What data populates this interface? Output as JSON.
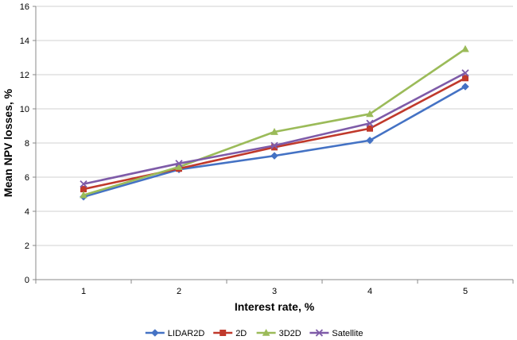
{
  "chart_data": {
    "type": "line",
    "title": "",
    "xlabel": "Interest rate, %",
    "ylabel": "Mean NPV losses, %",
    "categories": [
      "1",
      "2",
      "3",
      "4",
      "5"
    ],
    "ylim": [
      0,
      16
    ],
    "yticks": [
      "0",
      "2",
      "4",
      "6",
      "8",
      "10",
      "12",
      "14",
      "16"
    ],
    "grid": "horizontal",
    "legend_position": "bottom",
    "series": [
      {
        "name": "LIDAR2D",
        "values": [
          4.85,
          6.45,
          7.25,
          8.15,
          11.3
        ],
        "color": "#4472C4",
        "marker": "diamond"
      },
      {
        "name": "2D",
        "values": [
          5.3,
          6.5,
          7.75,
          8.85,
          11.8
        ],
        "color": "#C0392B",
        "marker": "square"
      },
      {
        "name": "3D2D",
        "values": [
          4.95,
          6.6,
          8.65,
          9.7,
          13.5
        ],
        "color": "#9BBB59",
        "marker": "triangle"
      },
      {
        "name": "Satellite",
        "values": [
          5.6,
          6.8,
          7.85,
          9.15,
          12.1
        ],
        "color": "#7E5BA8",
        "marker": "x"
      }
    ]
  }
}
